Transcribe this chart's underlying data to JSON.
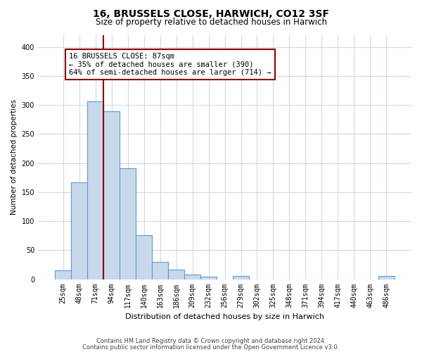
{
  "title": "16, BRUSSELS CLOSE, HARWICH, CO12 3SF",
  "subtitle": "Size of property relative to detached houses in Harwich",
  "xlabel": "Distribution of detached houses by size in Harwich",
  "ylabel": "Number of detached properties",
  "bin_labels": [
    "25sqm",
    "48sqm",
    "71sqm",
    "94sqm",
    "117sqm",
    "140sqm",
    "163sqm",
    "186sqm",
    "209sqm",
    "232sqm",
    "256sqm",
    "279sqm",
    "302sqm",
    "325sqm",
    "348sqm",
    "371sqm",
    "394sqm",
    "417sqm",
    "440sqm",
    "463sqm",
    "486sqm"
  ],
  "bar_values": [
    15,
    167,
    306,
    289,
    191,
    76,
    30,
    17,
    8,
    4,
    0,
    5,
    0,
    0,
    0,
    0,
    0,
    0,
    0,
    0,
    5
  ],
  "bar_color": "#c9d9ec",
  "bar_edgecolor": "#5b9bd5",
  "vline_color": "#8b0000",
  "annotation_text": "16 BRUSSELS CLOSE: 87sqm\n← 35% of detached houses are smaller (390)\n64% of semi-detached houses are larger (714) →",
  "annotation_box_edgecolor": "#8b0000",
  "annotation_box_facecolor": "#ffffff",
  "ylim": [
    0,
    420
  ],
  "yticks": [
    0,
    50,
    100,
    150,
    200,
    250,
    300,
    350,
    400
  ],
  "footer_line1": "Contains HM Land Registry data © Crown copyright and database right 2024.",
  "footer_line2": "Contains public sector information licensed under the Open Government Licence v3.0.",
  "background_color": "#ffffff",
  "grid_color": "#d0d8e8",
  "title_fontsize": 10,
  "subtitle_fontsize": 8.5,
  "ylabel_fontsize": 7.5,
  "xlabel_fontsize": 8,
  "tick_fontsize": 7,
  "footer_fontsize": 6,
  "annotation_fontsize": 7.5,
  "vline_x": 2.5
}
